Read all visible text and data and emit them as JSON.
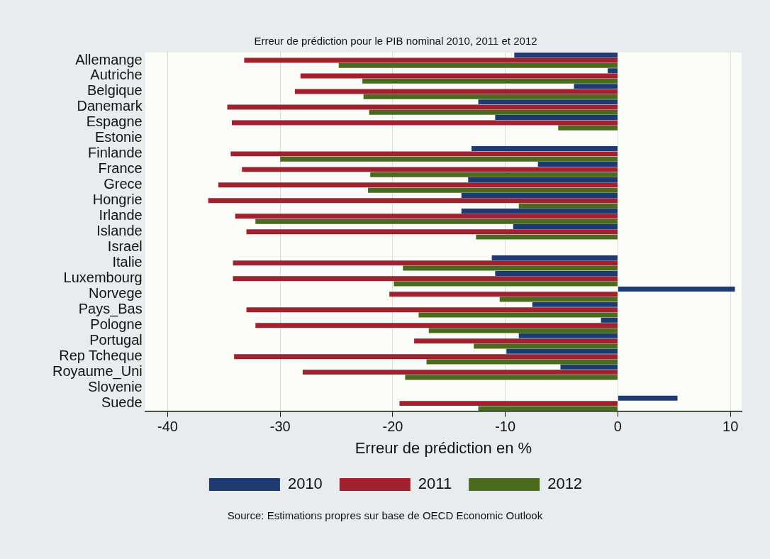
{
  "chart_data": {
    "type": "bar",
    "orientation": "horizontal",
    "title": "Erreur de prédiction pour le PIB nominal 2010, 2011 et 2012",
    "xlabel": "Erreur de prédiction en %",
    "categories": [
      "Allemange",
      "Autriche",
      "Belgique",
      "Danemark",
      "Espagne",
      "Estonie",
      "Finlande",
      "France",
      "Grece",
      "Hongrie",
      "Irlande",
      "Islande",
      "Israel",
      "Italie",
      "Luxembourg",
      "Norvege",
      "Pays_Bas",
      "Pologne",
      "Portugal",
      "Rep Tcheque",
      "Royaume_Uni",
      "Slovenie",
      "Suede"
    ],
    "series": [
      {
        "name": "2010",
        "color": "#1f3a6e",
        "values": [
          -9.2,
          -0.9,
          -3.9,
          -12.4,
          -10.9,
          null,
          -13.0,
          -7.1,
          -13.3,
          -13.9,
          -13.9,
          -9.3,
          null,
          -11.2,
          -10.9,
          10.4,
          -7.6,
          -1.5,
          -8.8,
          -9.9,
          -5.1,
          null,
          5.3
        ]
      },
      {
        "name": "2011",
        "color": "#a3202e",
        "values": [
          -33.2,
          -28.2,
          -28.7,
          -34.7,
          -34.3,
          null,
          -34.4,
          -33.4,
          -35.5,
          -36.4,
          -34.0,
          -33.0,
          null,
          -34.2,
          -34.2,
          -20.3,
          -33.0,
          -32.2,
          -18.1,
          -34.1,
          -28.0,
          null,
          -19.4
        ]
      },
      {
        "name": "2012",
        "color": "#4a6a1e",
        "values": [
          -24.8,
          -22.7,
          -22.6,
          -22.1,
          -5.3,
          null,
          -30.0,
          -22.0,
          -22.2,
          -8.8,
          -32.2,
          -12.6,
          null,
          -19.1,
          -19.9,
          -10.5,
          -17.7,
          -16.8,
          -12.8,
          -17.0,
          -18.9,
          null,
          -12.4
        ]
      }
    ],
    "xlim": [
      -42,
      11
    ],
    "xticks": [
      -40,
      -30,
      -20,
      -10,
      0,
      10
    ],
    "grid": "x",
    "legend": "bottom",
    "annotations": [
      "Source: Estimations propres sur base de OECD Economic Outlook"
    ]
  }
}
